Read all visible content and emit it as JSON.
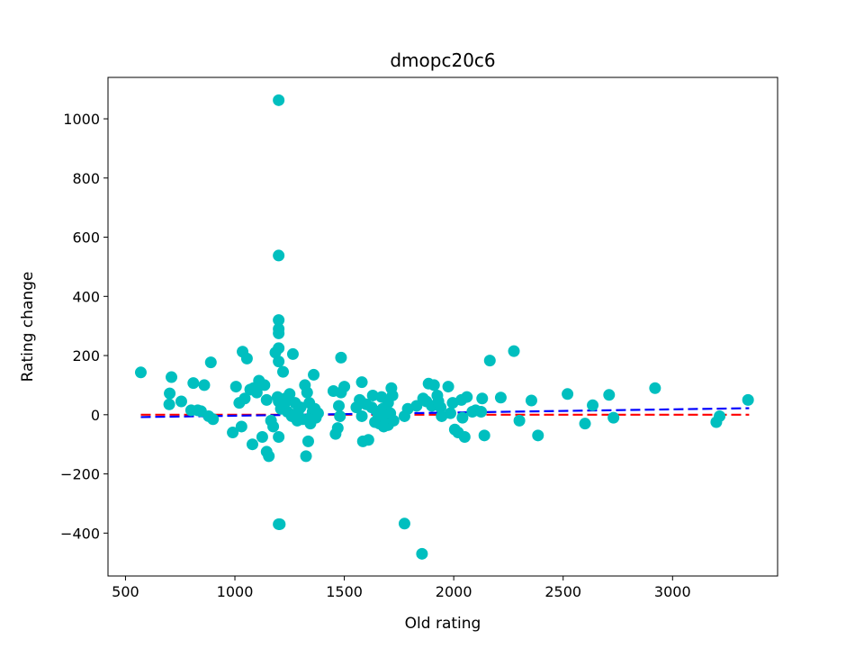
{
  "chart_data": {
    "type": "scatter",
    "title": "dmopc20c6",
    "xlabel": "Old rating",
    "ylabel": "Rating change",
    "xlim": [
      420,
      3480
    ],
    "ylim": [
      -545,
      1140
    ],
    "xticks": [
      500,
      1000,
      1500,
      2000,
      2500,
      3000
    ],
    "yticks": [
      -400,
      -200,
      0,
      200,
      400,
      600,
      800,
      1000
    ],
    "grid": false,
    "colors": {
      "points": "#00bfbf",
      "zero_line": "#ff0000",
      "trend_line": "#0000ff"
    },
    "reference_line": {
      "style": "dashed",
      "color": "red",
      "points": [
        [
          570,
          0
        ],
        [
          3350,
          0
        ]
      ]
    },
    "trend_line": {
      "style": "dashed",
      "color": "blue",
      "points": [
        [
          570,
          -8
        ],
        [
          3350,
          22
        ]
      ]
    },
    "points": [
      [
        570,
        143
      ],
      [
        700,
        35
      ],
      [
        702,
        72
      ],
      [
        710,
        127
      ],
      [
        755,
        45
      ],
      [
        800,
        15
      ],
      [
        810,
        107
      ],
      [
        830,
        15
      ],
      [
        845,
        12
      ],
      [
        860,
        100
      ],
      [
        880,
        -5
      ],
      [
        890,
        177
      ],
      [
        900,
        -15
      ],
      [
        990,
        -60
      ],
      [
        1005,
        95
      ],
      [
        1020,
        40
      ],
      [
        1030,
        -40
      ],
      [
        1035,
        213
      ],
      [
        1045,
        55
      ],
      [
        1055,
        190
      ],
      [
        1070,
        85
      ],
      [
        1080,
        -100
      ],
      [
        1085,
        90
      ],
      [
        1100,
        75
      ],
      [
        1110,
        115
      ],
      [
        1125,
        -75
      ],
      [
        1135,
        100
      ],
      [
        1145,
        50
      ],
      [
        1145,
        -125
      ],
      [
        1155,
        -140
      ],
      [
        1165,
        -20
      ],
      [
        1175,
        -40
      ],
      [
        1185,
        210
      ],
      [
        1195,
        60
      ],
      [
        1200,
        1063
      ],
      [
        1200,
        538
      ],
      [
        1200,
        320
      ],
      [
        1200,
        290
      ],
      [
        1200,
        275
      ],
      [
        1200,
        225
      ],
      [
        1200,
        180
      ],
      [
        1200,
        45
      ],
      [
        1200,
        -75
      ],
      [
        1200,
        -370
      ],
      [
        1205,
        -370
      ],
      [
        1210,
        20
      ],
      [
        1220,
        145
      ],
      [
        1225,
        35
      ],
      [
        1230,
        55
      ],
      [
        1240,
        10
      ],
      [
        1250,
        70
      ],
      [
        1260,
        -5
      ],
      [
        1265,
        205
      ],
      [
        1275,
        40
      ],
      [
        1285,
        -20
      ],
      [
        1290,
        15
      ],
      [
        1300,
        25
      ],
      [
        1310,
        -15
      ],
      [
        1320,
        100
      ],
      [
        1325,
        -140
      ],
      [
        1330,
        75
      ],
      [
        1335,
        -90
      ],
      [
        1340,
        40
      ],
      [
        1345,
        -30
      ],
      [
        1350,
        -5
      ],
      [
        1355,
        10
      ],
      [
        1360,
        135
      ],
      [
        1365,
        20
      ],
      [
        1370,
        -10
      ],
      [
        1380,
        5
      ],
      [
        1450,
        80
      ],
      [
        1460,
        -65
      ],
      [
        1470,
        -45
      ],
      [
        1475,
        30
      ],
      [
        1480,
        -5
      ],
      [
        1485,
        75
      ],
      [
        1485,
        193
      ],
      [
        1500,
        95
      ],
      [
        1555,
        25
      ],
      [
        1570,
        50
      ],
      [
        1575,
        45
      ],
      [
        1580,
        110
      ],
      [
        1580,
        -5
      ],
      [
        1585,
        -90
      ],
      [
        1600,
        35
      ],
      [
        1610,
        -85
      ],
      [
        1625,
        25
      ],
      [
        1630,
        65
      ],
      [
        1640,
        -25
      ],
      [
        1650,
        10
      ],
      [
        1655,
        -5
      ],
      [
        1660,
        -30
      ],
      [
        1670,
        60
      ],
      [
        1675,
        20
      ],
      [
        1680,
        -40
      ],
      [
        1690,
        -15
      ],
      [
        1700,
        40
      ],
      [
        1700,
        -35
      ],
      [
        1710,
        5
      ],
      [
        1715,
        90
      ],
      [
        1720,
        65
      ],
      [
        1725,
        -20
      ],
      [
        1775,
        -5
      ],
      [
        1775,
        -368
      ],
      [
        1790,
        20
      ],
      [
        1830,
        30
      ],
      [
        1855,
        -470
      ],
      [
        1860,
        55
      ],
      [
        1875,
        45
      ],
      [
        1885,
        105
      ],
      [
        1900,
        30
      ],
      [
        1910,
        100
      ],
      [
        1925,
        65
      ],
      [
        1930,
        45
      ],
      [
        1940,
        25
      ],
      [
        1945,
        -5
      ],
      [
        1975,
        95
      ],
      [
        1985,
        5
      ],
      [
        1995,
        40
      ],
      [
        2005,
        -50
      ],
      [
        2020,
        -60
      ],
      [
        2035,
        50
      ],
      [
        2040,
        -10
      ],
      [
        2050,
        -75
      ],
      [
        2060,
        60
      ],
      [
        2085,
        10
      ],
      [
        2100,
        15
      ],
      [
        2125,
        10
      ],
      [
        2130,
        55
      ],
      [
        2140,
        -70
      ],
      [
        2165,
        183
      ],
      [
        2215,
        58
      ],
      [
        2275,
        215
      ],
      [
        2300,
        -20
      ],
      [
        2355,
        48
      ],
      [
        2385,
        -70
      ],
      [
        2520,
        70
      ],
      [
        2600,
        -30
      ],
      [
        2635,
        32
      ],
      [
        2710,
        67
      ],
      [
        2730,
        -10
      ],
      [
        2920,
        90
      ],
      [
        3200,
        -25
      ],
      [
        3215,
        -5
      ],
      [
        3345,
        50
      ]
    ]
  }
}
